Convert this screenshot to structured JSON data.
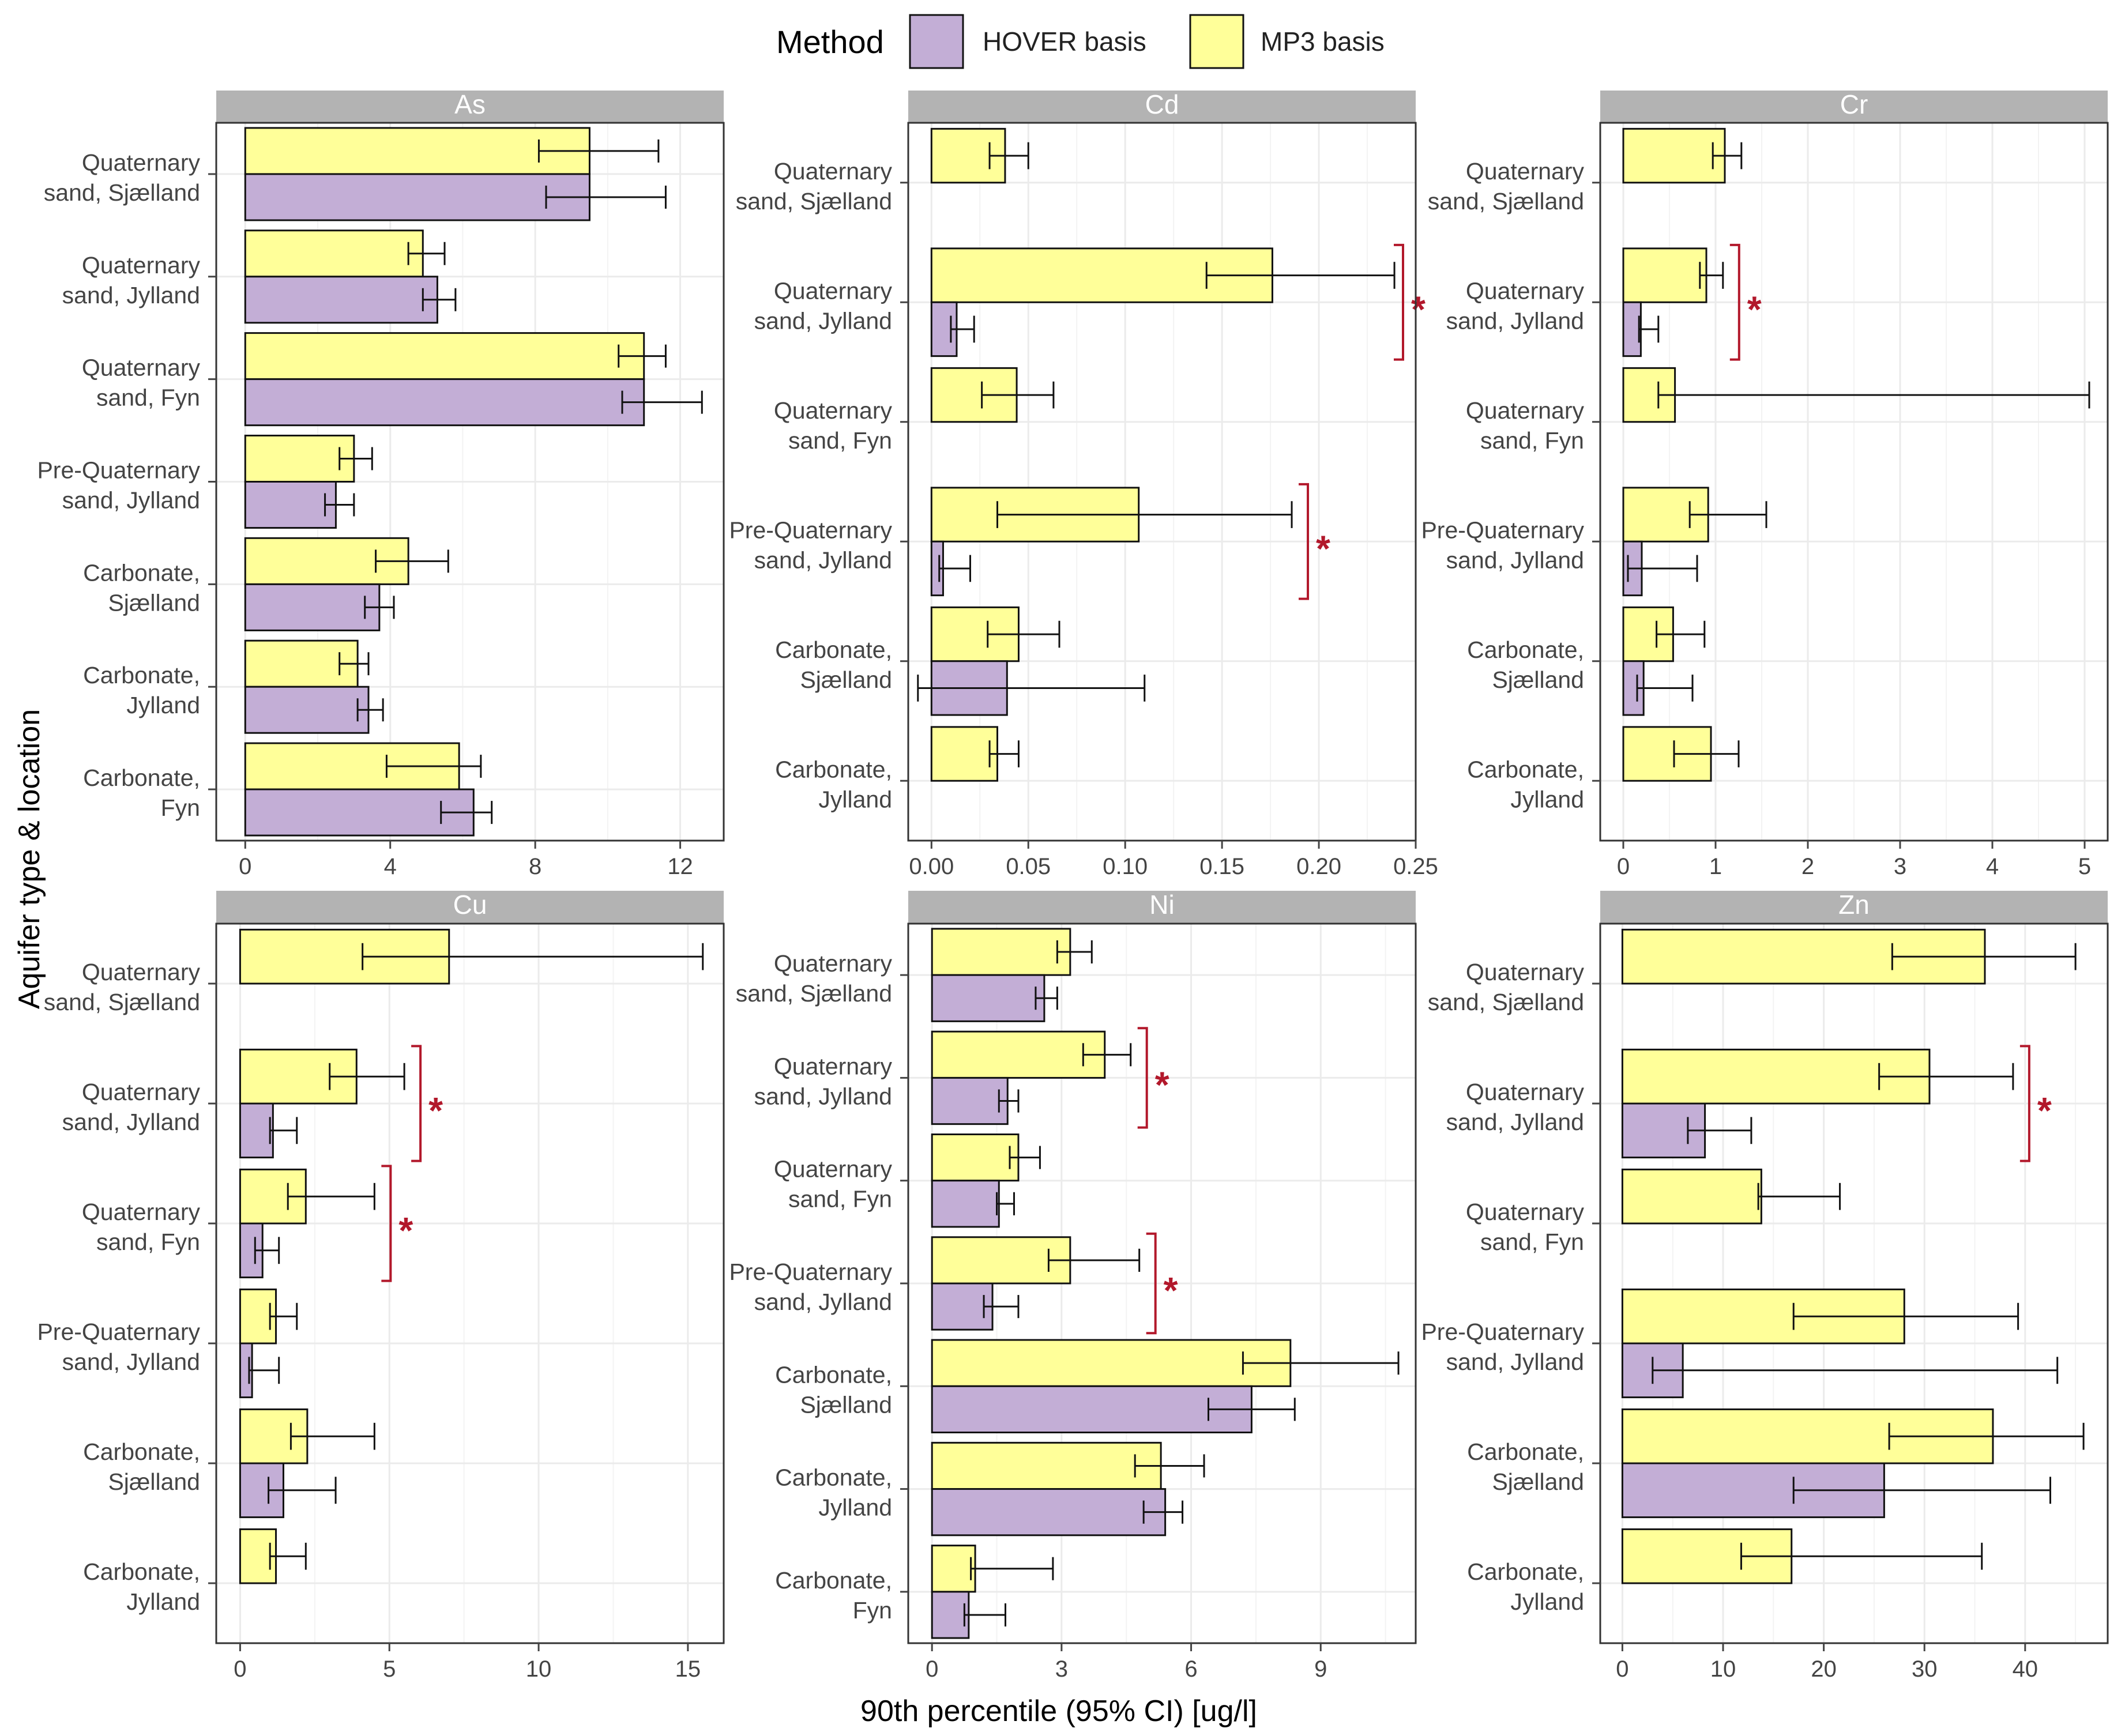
{
  "legend": {
    "title": "Method",
    "items": [
      {
        "label": "HOVER basis",
        "color": "#c3aed6"
      },
      {
        "label": "MP3 basis",
        "color": "#ffff99"
      }
    ]
  },
  "x_axis_title": "90th percentile (95% CI) [ug/l]",
  "y_axis_title": "Aquifer type & location",
  "colors": {
    "strip": "#b3b3b3",
    "grid": "#ebebeb",
    "panel_border": "#333333",
    "significance": "#b2182b"
  },
  "chart_data": [
    {
      "type": "bar",
      "title": "As",
      "xlim": [
        -0.8,
        13.2
      ],
      "ticks": [
        0,
        4,
        8,
        12
      ],
      "categories": [
        [
          "Quaternary",
          "sand, Sjælland"
        ],
        [
          "Quaternary",
          "sand, Jylland"
        ],
        [
          "Quaternary",
          "sand, Fyn"
        ],
        [
          "Pre-Quaternary",
          "sand, Jylland"
        ],
        [
          "Carbonate,",
          "Sjælland"
        ],
        [
          "Carbonate,",
          "Jylland"
        ],
        [
          "Carbonate,",
          "Fyn"
        ]
      ],
      "series": [
        {
          "name": "MP3 basis",
          "values": [
            9.5,
            4.9,
            11.0,
            3.0,
            4.5,
            3.1,
            5.9
          ],
          "lower": [
            8.1,
            4.5,
            10.3,
            2.6,
            3.6,
            2.6,
            3.9
          ],
          "upper": [
            11.4,
            5.5,
            11.6,
            3.5,
            5.6,
            3.4,
            6.5
          ]
        },
        {
          "name": "HOVER basis",
          "values": [
            9.5,
            5.3,
            11.0,
            2.5,
            3.7,
            3.4,
            6.3
          ],
          "lower": [
            8.3,
            4.9,
            10.4,
            2.2,
            3.3,
            3.1,
            5.4
          ],
          "upper": [
            11.6,
            5.8,
            12.6,
            3.0,
            4.1,
            3.8,
            6.8
          ]
        }
      ],
      "significance": []
    },
    {
      "type": "bar",
      "title": "Cd",
      "xlim": [
        -0.012,
        0.25
      ],
      "ticks": [
        0.0,
        0.05,
        0.1,
        0.15,
        0.2,
        0.25
      ],
      "tick_labels": [
        "0.00",
        "0.05",
        "0.10",
        "0.15",
        "0.20",
        "0.25"
      ],
      "categories": [
        [
          "Quaternary",
          "sand, Sjælland"
        ],
        [
          "Quaternary",
          "sand, Jylland"
        ],
        [
          "Quaternary",
          "sand, Fyn"
        ],
        [
          "Pre-Quaternary",
          "sand, Jylland"
        ],
        [
          "Carbonate,",
          "Sjælland"
        ],
        [
          "Carbonate,",
          "Jylland"
        ]
      ],
      "series": [
        {
          "name": "MP3 basis",
          "values": [
            0.038,
            0.176,
            0.044,
            0.107,
            0.045,
            0.034
          ],
          "lower": [
            0.03,
            0.142,
            0.026,
            0.034,
            0.029,
            0.03
          ],
          "upper": [
            0.05,
            0.239,
            0.063,
            0.186,
            0.066,
            0.045
          ]
        },
        {
          "name": "HOVER basis",
          "values": [
            null,
            0.013,
            null,
            0.006,
            0.039,
            null
          ],
          "lower": [
            null,
            0.01,
            null,
            0.004,
            -0.007,
            null
          ],
          "upper": [
            null,
            0.022,
            null,
            0.02,
            0.11,
            null
          ]
        }
      ],
      "significance": [
        1,
        3
      ]
    },
    {
      "type": "bar",
      "title": "Cr",
      "xlim": [
        -0.25,
        5.25
      ],
      "ticks": [
        0,
        1,
        2,
        3,
        4,
        5
      ],
      "categories": [
        [
          "Quaternary",
          "sand, Sjælland"
        ],
        [
          "Quaternary",
          "sand, Jylland"
        ],
        [
          "Quaternary",
          "sand, Fyn"
        ],
        [
          "Pre-Quaternary",
          "sand, Jylland"
        ],
        [
          "Carbonate,",
          "Sjælland"
        ],
        [
          "Carbonate,",
          "Jylland"
        ]
      ],
      "series": [
        {
          "name": "MP3 basis",
          "values": [
            1.1,
            0.9,
            0.56,
            0.92,
            0.54,
            0.95
          ],
          "lower": [
            0.97,
            0.83,
            0.38,
            0.72,
            0.36,
            0.55
          ],
          "upper": [
            1.28,
            1.08,
            5.05,
            1.55,
            0.88,
            1.25
          ]
        },
        {
          "name": "HOVER basis",
          "values": [
            null,
            0.19,
            null,
            0.2,
            0.22,
            null
          ],
          "lower": [
            null,
            0.17,
            null,
            0.05,
            0.15,
            null
          ],
          "upper": [
            null,
            0.38,
            null,
            0.8,
            0.75,
            null
          ]
        }
      ],
      "significance": [
        1
      ]
    },
    {
      "type": "bar",
      "title": "Cu",
      "xlim": [
        -0.8,
        16.2
      ],
      "ticks": [
        0,
        5,
        10,
        15
      ],
      "categories": [
        [
          "Quaternary",
          "sand, Sjælland"
        ],
        [
          "Quaternary",
          "sand, Jylland"
        ],
        [
          "Quaternary",
          "sand, Fyn"
        ],
        [
          "Pre-Quaternary",
          "sand, Jylland"
        ],
        [
          "Carbonate,",
          "Sjælland"
        ],
        [
          "Carbonate,",
          "Jylland"
        ]
      ],
      "series": [
        {
          "name": "MP3 basis",
          "values": [
            7.0,
            3.9,
            2.2,
            1.2,
            2.25,
            1.2
          ],
          "lower": [
            4.1,
            3.0,
            1.6,
            1.0,
            1.7,
            1.0
          ],
          "upper": [
            15.5,
            5.5,
            4.5,
            1.9,
            4.5,
            2.2
          ]
        },
        {
          "name": "HOVER basis",
          "values": [
            null,
            1.1,
            0.75,
            0.4,
            1.45,
            null
          ],
          "lower": [
            null,
            1.0,
            0.5,
            0.3,
            0.95,
            null
          ],
          "upper": [
            null,
            1.9,
            1.3,
            1.3,
            3.2,
            null
          ]
        }
      ],
      "significance": [
        1,
        2
      ]
    },
    {
      "type": "bar",
      "title": "Ni",
      "xlim": [
        -0.55,
        11.2
      ],
      "ticks": [
        0,
        3,
        6,
        9
      ],
      "categories": [
        [
          "Quaternary",
          "sand, Sjælland"
        ],
        [
          "Quaternary",
          "sand, Jylland"
        ],
        [
          "Quaternary",
          "sand, Fyn"
        ],
        [
          "Pre-Quaternary",
          "sand, Jylland"
        ],
        [
          "Carbonate,",
          "Sjælland"
        ],
        [
          "Carbonate,",
          "Jylland"
        ],
        [
          "Carbonate,",
          "Fyn"
        ]
      ],
      "series": [
        {
          "name": "MP3 basis",
          "values": [
            3.2,
            4.0,
            2.0,
            3.2,
            8.3,
            5.3,
            1.0
          ],
          "lower": [
            2.9,
            3.5,
            1.8,
            2.7,
            7.2,
            4.7,
            0.9
          ],
          "upper": [
            3.7,
            4.6,
            2.5,
            4.8,
            10.8,
            6.3,
            2.8
          ]
        },
        {
          "name": "HOVER basis",
          "values": [
            2.6,
            1.75,
            1.55,
            1.4,
            7.4,
            5.4,
            0.85
          ],
          "lower": [
            2.4,
            1.55,
            1.5,
            1.2,
            6.4,
            4.9,
            0.75
          ],
          "upper": [
            2.9,
            2.0,
            1.9,
            2.0,
            8.4,
            5.8,
            1.7
          ]
        }
      ],
      "significance": [
        1,
        3
      ]
    },
    {
      "type": "bar",
      "title": "Zn",
      "xlim": [
        -2.2,
        48.2
      ],
      "ticks": [
        0,
        10,
        20,
        30,
        40
      ],
      "categories": [
        [
          "Quaternary",
          "sand, Sjælland"
        ],
        [
          "Quaternary",
          "sand, Jylland"
        ],
        [
          "Quaternary",
          "sand, Fyn"
        ],
        [
          "Pre-Quaternary",
          "sand, Jylland"
        ],
        [
          "Carbonate,",
          "Sjælland"
        ],
        [
          "Carbonate,",
          "Jylland"
        ]
      ],
      "series": [
        {
          "name": "MP3 basis",
          "values": [
            36,
            30.5,
            13.8,
            28,
            36.8,
            16.8
          ],
          "lower": [
            26.8,
            25.5,
            13.5,
            17,
            26.5,
            11.8
          ],
          "upper": [
            45,
            38.8,
            21.6,
            39.3,
            45.8,
            35.7
          ]
        },
        {
          "name": "HOVER basis",
          "values": [
            null,
            8.2,
            null,
            6,
            26,
            null
          ],
          "lower": [
            null,
            6.5,
            null,
            3,
            17,
            null
          ],
          "upper": [
            null,
            12.8,
            null,
            43.2,
            42.5,
            null
          ]
        }
      ],
      "significance": [
        1
      ]
    }
  ]
}
